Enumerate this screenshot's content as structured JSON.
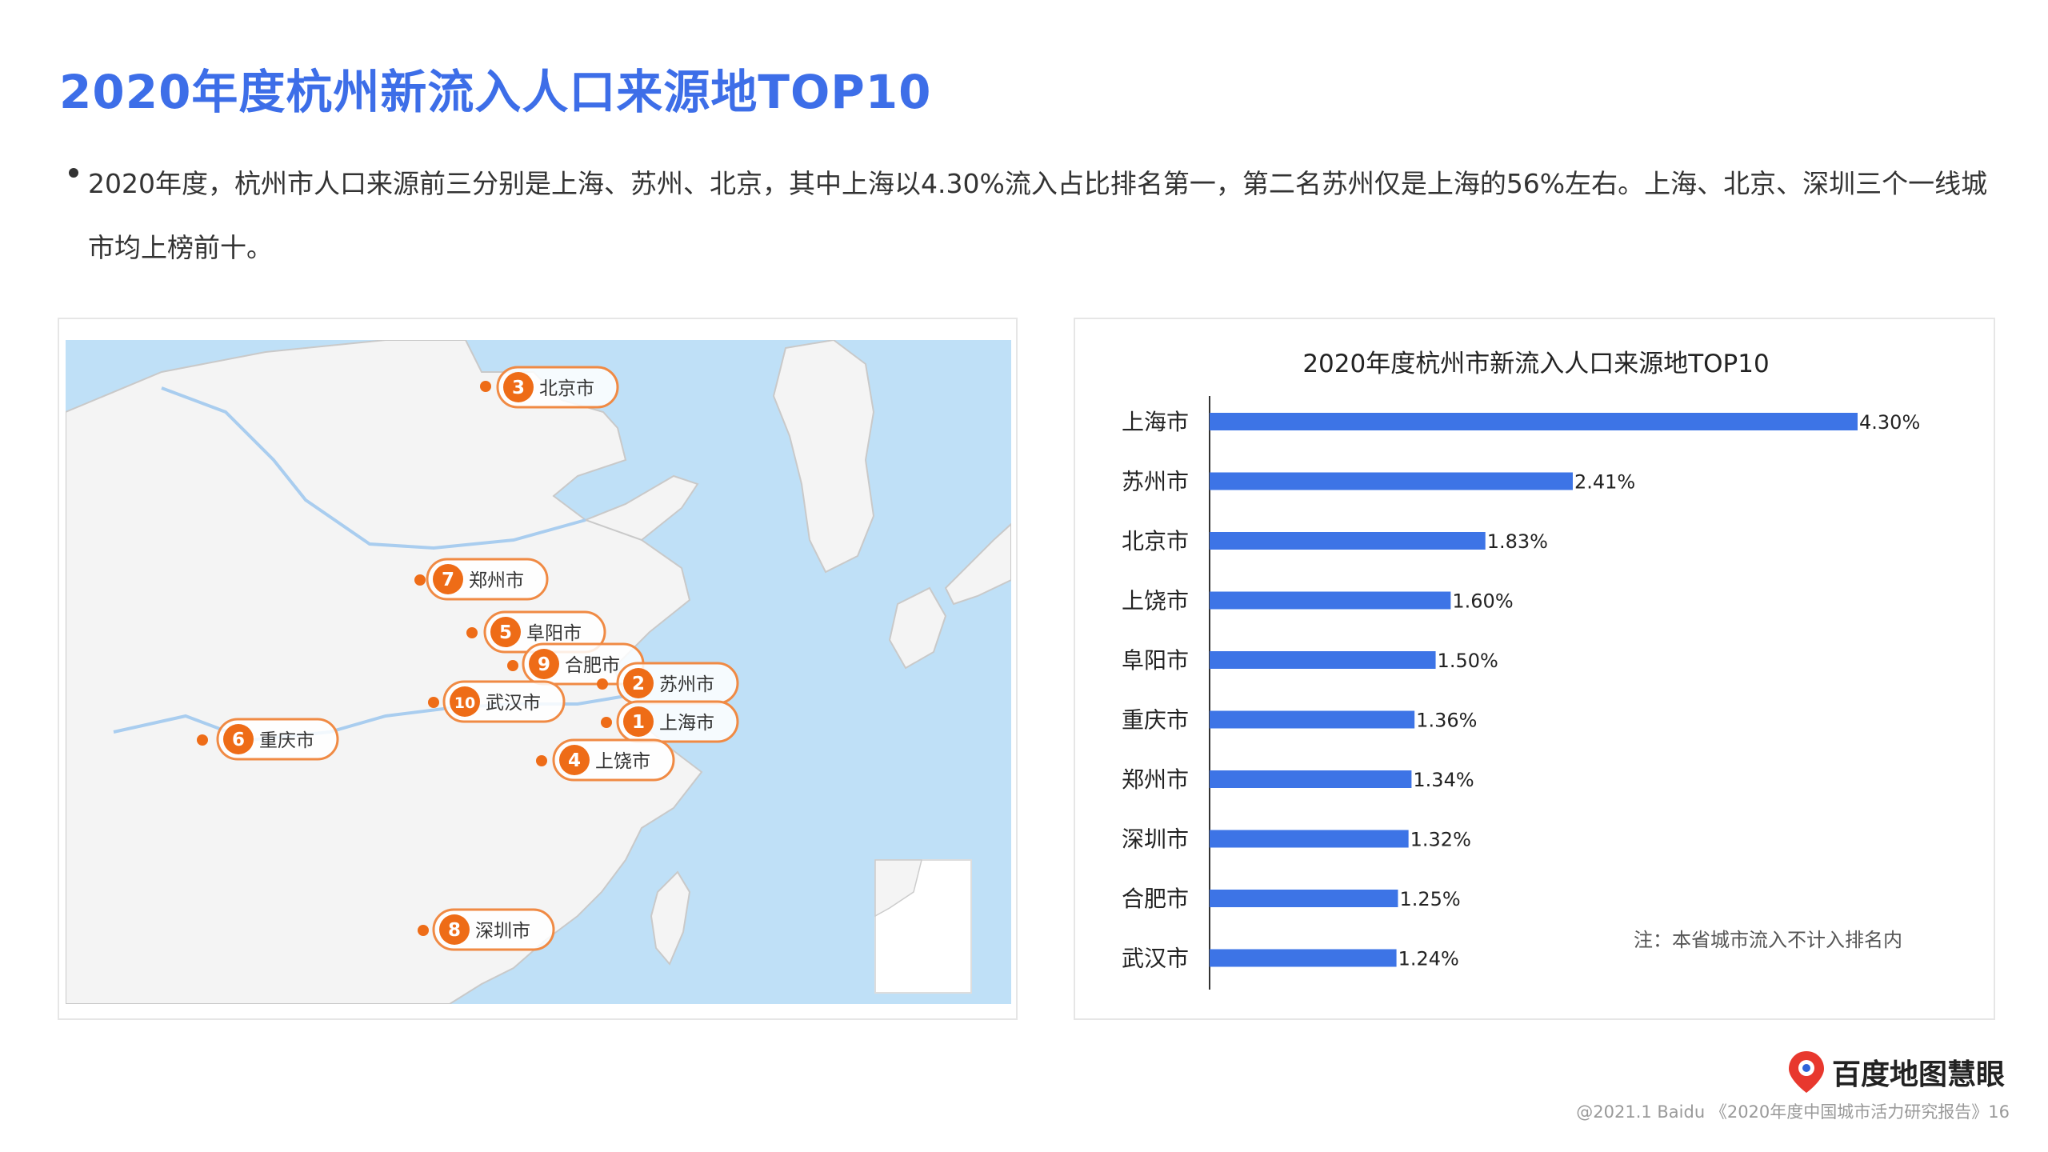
{
  "page": {
    "title": "2020年度杭州新流入人口来源地TOP10",
    "bullet": "2020年度，杭州市人口来源前三分别是上海、苏州、北京，其中上海以4.30%流入占比排名第一，第二名苏州仅是上海的56%左右。上海、北京、深圳三个一线城市均上榜前十。",
    "brand": "百度地图慧眼",
    "footer": "@2021.1 Baidu 《2020年度中国城市活力研究报告》16"
  },
  "map": {
    "markers": [
      {
        "rank": "3",
        "city": "北京市"
      },
      {
        "rank": "7",
        "city": "郑州市"
      },
      {
        "rank": "5",
        "city": "阜阳市"
      },
      {
        "rank": "9",
        "city": "合肥市"
      },
      {
        "rank": "2",
        "city": "苏州市"
      },
      {
        "rank": "10",
        "city": "武汉市"
      },
      {
        "rank": "1",
        "city": "上海市"
      },
      {
        "rank": "6",
        "city": "重庆市"
      },
      {
        "rank": "4",
        "city": "上饶市"
      },
      {
        "rank": "8",
        "city": "深圳市"
      }
    ],
    "colors": {
      "land": "#f4f4f4",
      "sea": "#bfe0f7",
      "marker": "#ee6c17",
      "outline": "#f08a44"
    }
  },
  "chart_data": {
    "type": "bar",
    "orientation": "horizontal",
    "title": "2020年度杭州市新流入人口来源地TOP10",
    "categories": [
      "上海市",
      "苏州市",
      "北京市",
      "上饶市",
      "阜阳市",
      "重庆市",
      "郑州市",
      "深圳市",
      "合肥市",
      "武汉市"
    ],
    "values": [
      4.3,
      2.41,
      1.83,
      1.6,
      1.5,
      1.36,
      1.34,
      1.32,
      1.25,
      1.24
    ],
    "value_labels": [
      "4.30%",
      "2.41%",
      "1.83%",
      "1.60%",
      "1.50%",
      "1.36%",
      "1.34%",
      "1.32%",
      "1.25%",
      "1.24%"
    ],
    "xlim": [
      0,
      4.3
    ],
    "note": "注：本省城市流入不计入排名内",
    "bar_color": "#3d74e6",
    "grid": false
  }
}
